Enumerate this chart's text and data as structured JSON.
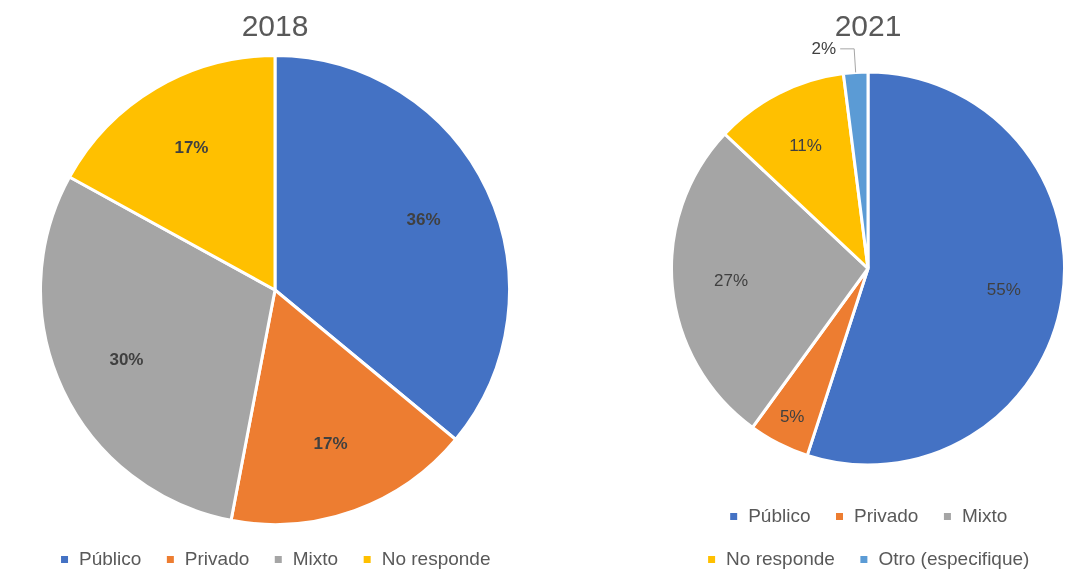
{
  "chart_data": [
    {
      "type": "pie",
      "title": "2018",
      "categories": [
        "Público",
        "Privado",
        "Mixto",
        "No responde"
      ],
      "values": [
        36,
        17,
        30,
        17
      ],
      "colors": [
        "#4472c4",
        "#ed7d31",
        "#a5a5a5",
        "#ffc000"
      ],
      "value_labels": [
        "36%",
        "17%",
        "30%",
        "17%"
      ],
      "legend": "bottom"
    },
    {
      "type": "pie",
      "title": "2021",
      "categories": [
        "Público",
        "Privado",
        "Mixto",
        "No responde",
        "Otro (especifique)"
      ],
      "values": [
        55,
        5,
        27,
        11,
        2
      ],
      "colors": [
        "#4472c4",
        "#ed7d31",
        "#a5a5a5",
        "#ffc000",
        "#5b9bd5"
      ],
      "value_labels": [
        "55%",
        "5%",
        "27%",
        "11%",
        "2%"
      ],
      "legend": "bottom"
    }
  ]
}
